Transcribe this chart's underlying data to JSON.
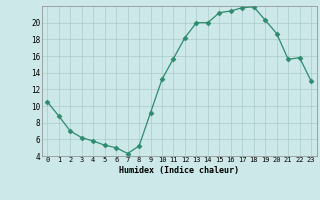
{
  "x": [
    0,
    1,
    2,
    3,
    4,
    5,
    6,
    7,
    8,
    9,
    10,
    11,
    12,
    13,
    14,
    15,
    16,
    17,
    18,
    19,
    20,
    21,
    22,
    23
  ],
  "y": [
    10.5,
    8.8,
    7.0,
    6.2,
    5.8,
    5.3,
    5.0,
    4.3,
    5.2,
    9.2,
    13.2,
    15.7,
    18.2,
    20.0,
    20.0,
    21.2,
    21.4,
    21.8,
    21.9,
    20.3,
    18.7,
    15.6,
    15.8,
    13.0
  ],
  "xlabel": "Humidex (Indice chaleur)",
  "ylim": [
    4,
    22
  ],
  "xlim": [
    -0.5,
    23.5
  ],
  "yticks": [
    4,
    6,
    8,
    10,
    12,
    14,
    16,
    18,
    20
  ],
  "xticks": [
    0,
    1,
    2,
    3,
    4,
    5,
    6,
    7,
    8,
    9,
    10,
    11,
    12,
    13,
    14,
    15,
    16,
    17,
    18,
    19,
    20,
    21,
    22,
    23
  ],
  "line_color": "#2e8b6e",
  "marker": "D",
  "marker_size": 2.5,
  "bg_color": "#cce8e8",
  "grid_color": "#aacaca",
  "axes_color": "#888888"
}
